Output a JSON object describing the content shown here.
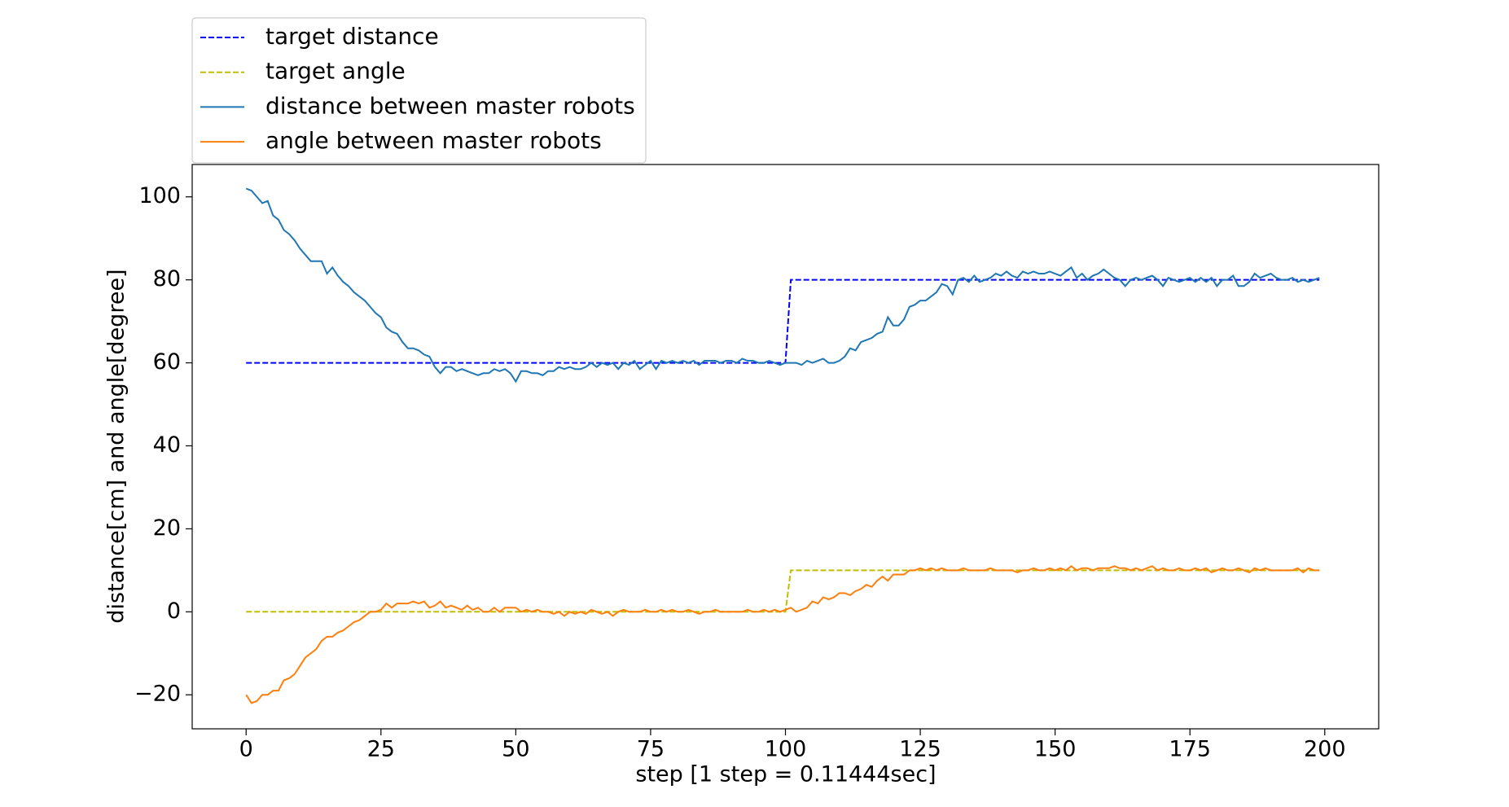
{
  "chart_data": {
    "type": "line",
    "xlabel": "step [1 step = 0.11444sec]",
    "ylabel": "distance[cm] and angle[degree]",
    "xlim": [
      -10,
      210
    ],
    "ylim": [
      -28.2,
      107.8
    ],
    "xticks": [
      0,
      25,
      50,
      75,
      100,
      125,
      150,
      175,
      200
    ],
    "yticks": [
      {
        "value": -20,
        "label": "−20"
      },
      0,
      20,
      40,
      60,
      80,
      100
    ],
    "legend": "upper left outside",
    "x": [
      0,
      1,
      2,
      3,
      4,
      5,
      6,
      7,
      8,
      9,
      10,
      11,
      12,
      13,
      14,
      15,
      16,
      17,
      18,
      19,
      20,
      21,
      22,
      23,
      24,
      25,
      26,
      27,
      28,
      29,
      30,
      31,
      32,
      33,
      34,
      35,
      36,
      37,
      38,
      39,
      40,
      41,
      42,
      43,
      44,
      45,
      46,
      47,
      48,
      49,
      50,
      51,
      52,
      53,
      54,
      55,
      56,
      57,
      58,
      59,
      60,
      61,
      62,
      63,
      64,
      65,
      66,
      67,
      68,
      69,
      70,
      71,
      72,
      73,
      74,
      75,
      76,
      77,
      78,
      79,
      80,
      81,
      82,
      83,
      84,
      85,
      86,
      87,
      88,
      89,
      90,
      91,
      92,
      93,
      94,
      95,
      96,
      97,
      98,
      99,
      100,
      101,
      102,
      103,
      104,
      105,
      106,
      107,
      108,
      109,
      110,
      111,
      112,
      113,
      114,
      115,
      116,
      117,
      118,
      119,
      120,
      121,
      122,
      123,
      124,
      125,
      126,
      127,
      128,
      129,
      130,
      131,
      132,
      133,
      134,
      135,
      136,
      137,
      138,
      139,
      140,
      141,
      142,
      143,
      144,
      145,
      146,
      147,
      148,
      149,
      150,
      151,
      152,
      153,
      154,
      155,
      156,
      157,
      158,
      159,
      160,
      161,
      162,
      163,
      164,
      165,
      166,
      167,
      168,
      169,
      170,
      171,
      172,
      173,
      174,
      175,
      176,
      177,
      178,
      179,
      180,
      181,
      182,
      183,
      184,
      185,
      186,
      187,
      188,
      189,
      190,
      191,
      192,
      193,
      194,
      195,
      196,
      197,
      198,
      199
    ],
    "series": [
      {
        "name": "target distance",
        "color": "#0000ff",
        "linestyle": "dashed",
        "values": [
          60,
          60,
          60,
          60,
          60,
          60,
          60,
          60,
          60,
          60,
          60,
          60,
          60,
          60,
          60,
          60,
          60,
          60,
          60,
          60,
          60,
          60,
          60,
          60,
          60,
          60,
          60,
          60,
          60,
          60,
          60,
          60,
          60,
          60,
          60,
          60,
          60,
          60,
          60,
          60,
          60,
          60,
          60,
          60,
          60,
          60,
          60,
          60,
          60,
          60,
          60,
          60,
          60,
          60,
          60,
          60,
          60,
          60,
          60,
          60,
          60,
          60,
          60,
          60,
          60,
          60,
          60,
          60,
          60,
          60,
          60,
          60,
          60,
          60,
          60,
          60,
          60,
          60,
          60,
          60,
          60,
          60,
          60,
          60,
          60,
          60,
          60,
          60,
          60,
          60,
          60,
          60,
          60,
          60,
          60,
          60,
          60,
          60,
          60,
          60,
          60,
          80,
          80,
          80,
          80,
          80,
          80,
          80,
          80,
          80,
          80,
          80,
          80,
          80,
          80,
          80,
          80,
          80,
          80,
          80,
          80,
          80,
          80,
          80,
          80,
          80,
          80,
          80,
          80,
          80,
          80,
          80,
          80,
          80,
          80,
          80,
          80,
          80,
          80,
          80,
          80,
          80,
          80,
          80,
          80,
          80,
          80,
          80,
          80,
          80,
          80,
          80,
          80,
          80,
          80,
          80,
          80,
          80,
          80,
          80,
          80,
          80,
          80,
          80,
          80,
          80,
          80,
          80,
          80,
          80,
          80,
          80,
          80,
          80,
          80,
          80,
          80,
          80,
          80,
          80,
          80,
          80,
          80,
          80,
          80,
          80,
          80,
          80,
          80,
          80,
          80,
          80,
          80,
          80,
          80,
          80,
          80,
          80,
          80,
          80
        ]
      },
      {
        "name": "target angle",
        "color": "#bfbf00",
        "linestyle": "dashed",
        "values": [
          0,
          0,
          0,
          0,
          0,
          0,
          0,
          0,
          0,
          0,
          0,
          0,
          0,
          0,
          0,
          0,
          0,
          0,
          0,
          0,
          0,
          0,
          0,
          0,
          0,
          0,
          0,
          0,
          0,
          0,
          0,
          0,
          0,
          0,
          0,
          0,
          0,
          0,
          0,
          0,
          0,
          0,
          0,
          0,
          0,
          0,
          0,
          0,
          0,
          0,
          0,
          0,
          0,
          0,
          0,
          0,
          0,
          0,
          0,
          0,
          0,
          0,
          0,
          0,
          0,
          0,
          0,
          0,
          0,
          0,
          0,
          0,
          0,
          0,
          0,
          0,
          0,
          0,
          0,
          0,
          0,
          0,
          0,
          0,
          0,
          0,
          0,
          0,
          0,
          0,
          0,
          0,
          0,
          0,
          0,
          0,
          0,
          0,
          0,
          0,
          0,
          10,
          10,
          10,
          10,
          10,
          10,
          10,
          10,
          10,
          10,
          10,
          10,
          10,
          10,
          10,
          10,
          10,
          10,
          10,
          10,
          10,
          10,
          10,
          10,
          10,
          10,
          10,
          10,
          10,
          10,
          10,
          10,
          10,
          10,
          10,
          10,
          10,
          10,
          10,
          10,
          10,
          10,
          10,
          10,
          10,
          10,
          10,
          10,
          10,
          10,
          10,
          10,
          10,
          10,
          10,
          10,
          10,
          10,
          10,
          10,
          10,
          10,
          10,
          10,
          10,
          10,
          10,
          10,
          10,
          10,
          10,
          10,
          10,
          10,
          10,
          10,
          10,
          10,
          10,
          10,
          10,
          10,
          10,
          10,
          10,
          10,
          10,
          10,
          10,
          10,
          10,
          10,
          10,
          10,
          10,
          10,
          10,
          10,
          10
        ]
      },
      {
        "name": "distance between master robots",
        "color": "#1f77b4",
        "linestyle": "solid",
        "values": [
          102,
          101.5,
          100,
          98.5,
          99,
          95.5,
          94.5,
          92,
          91,
          89.5,
          87.5,
          86,
          84.5,
          84.5,
          84.5,
          81.5,
          83,
          81,
          79.5,
          78.5,
          77,
          76,
          75,
          73.5,
          72,
          71,
          68.5,
          67.5,
          67,
          65,
          63.5,
          63.5,
          63,
          62,
          61.5,
          59,
          57.5,
          59,
          59,
          58,
          58.5,
          58,
          57.5,
          57,
          57.5,
          57.5,
          58.5,
          58,
          58.5,
          57.5,
          55.5,
          58,
          58,
          57.5,
          57.5,
          57,
          58,
          58,
          59,
          58.5,
          59,
          58.5,
          58.5,
          59,
          60,
          59,
          60,
          59.5,
          60,
          58.5,
          60,
          59.5,
          60.5,
          58.5,
          59.5,
          60.5,
          58.5,
          60.5,
          60,
          60.5,
          60,
          60.5,
          60,
          60.5,
          59.5,
          60.5,
          60.5,
          60.5,
          60,
          60.5,
          60.5,
          60,
          61,
          60.5,
          60.5,
          60,
          60,
          60.5,
          60,
          59.5,
          60,
          60,
          60,
          59.5,
          60.5,
          60,
          60.5,
          61,
          60,
          60,
          60.5,
          61.5,
          63.5,
          63,
          65,
          65.5,
          66,
          67,
          67.5,
          71,
          69,
          69,
          70.5,
          73.5,
          74,
          75,
          75,
          76,
          77,
          79,
          78.5,
          76.5,
          80,
          80.5,
          79.5,
          81,
          79.5,
          80,
          80.5,
          81.5,
          81,
          82,
          81,
          80.5,
          82,
          81.5,
          82,
          81.5,
          81.5,
          82,
          81.5,
          81,
          82,
          83,
          80.5,
          81.5,
          80,
          81,
          81.5,
          82.5,
          81.5,
          80.5,
          80,
          78.5,
          80,
          80.5,
          80,
          80.5,
          81,
          80,
          78.5,
          80.5,
          80,
          79.5,
          80,
          80.5,
          79.5,
          80.5,
          79.5,
          80.5,
          78.5,
          80,
          80,
          81,
          78.5,
          78.5,
          79.5,
          81.5,
          80.5,
          81,
          81.5,
          80.5,
          80,
          80,
          80.5,
          79.5,
          80,
          79.5,
          80,
          80.5
        ]
      },
      {
        "name": "angle between master robots",
        "color": "#ff7f0e",
        "linestyle": "solid",
        "values": [
          -20,
          -22,
          -21.5,
          -20,
          -20,
          -19,
          -19,
          -16.5,
          -16,
          -15,
          -13,
          -11,
          -10,
          -9,
          -7,
          -6,
          -6,
          -5,
          -4.5,
          -3.5,
          -2.5,
          -2,
          -1,
          0,
          0,
          0.5,
          2,
          1,
          2,
          2,
          2,
          2.5,
          2,
          2.5,
          1,
          1.5,
          2.5,
          1,
          1.5,
          1,
          0.5,
          1.5,
          0.5,
          1,
          0,
          0,
          1,
          0,
          1,
          1,
          1,
          0,
          0.5,
          0,
          0.5,
          0,
          0,
          -0.5,
          0,
          -1,
          0,
          -0.5,
          0,
          -0.5,
          0.5,
          0,
          -0.5,
          0,
          -1,
          0,
          0.5,
          0,
          0,
          0,
          0.5,
          0,
          0,
          0.5,
          0,
          0.5,
          0,
          0,
          0.5,
          0,
          -0.5,
          0,
          0,
          0.5,
          0,
          0,
          0,
          0,
          0,
          0.5,
          0,
          0,
          0.5,
          0,
          0.5,
          0,
          0.5,
          1,
          0,
          0.5,
          1,
          2.5,
          2,
          3.5,
          3,
          3.5,
          4.5,
          4.5,
          4,
          5,
          5.5,
          6.5,
          6,
          7.5,
          8.5,
          7.5,
          9,
          9,
          9,
          10,
          10,
          10.5,
          10,
          10.5,
          10,
          10.5,
          10,
          10,
          10,
          10.5,
          10,
          10,
          10,
          10,
          10.5,
          10,
          10,
          10,
          10,
          9.5,
          10,
          10,
          10.5,
          10,
          10,
          10.5,
          10,
          10.5,
          10,
          11,
          10,
          10.5,
          10.5,
          10,
          10.5,
          10.5,
          10.5,
          11,
          10.5,
          10.5,
          10,
          10.5,
          10,
          10.5,
          11,
          10,
          10.5,
          10,
          10,
          10.5,
          10,
          10,
          10.5,
          10,
          10.5,
          9.5,
          10,
          10.5,
          10,
          10,
          10.5,
          10,
          9.5,
          10.5,
          10,
          10.5,
          10,
          10,
          10,
          10,
          10,
          10.5,
          9.5,
          10.5,
          10,
          10
        ]
      }
    ]
  }
}
